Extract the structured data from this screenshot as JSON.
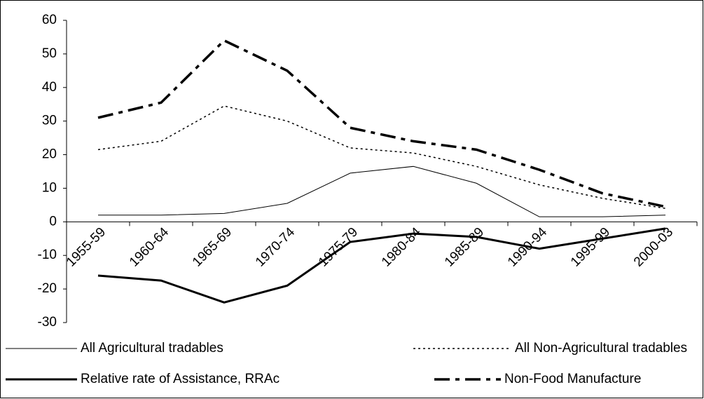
{
  "chart_data": {
    "type": "line",
    "categories": [
      "1955-59",
      "1960-64",
      "1965-69",
      "1970-74",
      "1975-79",
      "1980-84",
      "1985-89",
      "1990-94",
      "1995-99",
      "2000-03"
    ],
    "ylim": [
      -30,
      60
    ],
    "yticks": [
      -30,
      -20,
      -10,
      0,
      10,
      20,
      30,
      40,
      50,
      60
    ],
    "series": [
      {
        "name": "All Agricultural tradables",
        "color": "#000000",
        "width": 1,
        "dash": "none",
        "values": [
          2,
          2,
          2.5,
          5.5,
          14.5,
          16.5,
          11.5,
          1.5,
          1.5,
          2
        ]
      },
      {
        "name": "All Non-Agricultural tradables",
        "color": "#000000",
        "width": 1.5,
        "dash": "3,4",
        "values": [
          21.5,
          24,
          34.5,
          30,
          22,
          20.5,
          16.5,
          11,
          7,
          4
        ]
      },
      {
        "name": "Relative rate of Assistance, RRAc",
        "color": "#000000",
        "width": 3,
        "dash": "none",
        "values": [
          -16,
          -17.5,
          -24,
          -19,
          -6,
          -3.5,
          -4.5,
          -8,
          -5,
          -2
        ]
      },
      {
        "name": "Non-Food Manufacture",
        "color": "#000000",
        "width": 3.5,
        "dash": "22,8,6,8",
        "values": [
          31,
          35.5,
          54,
          45,
          28,
          24,
          21.5,
          15.5,
          8.5,
          4.5
        ]
      }
    ]
  }
}
